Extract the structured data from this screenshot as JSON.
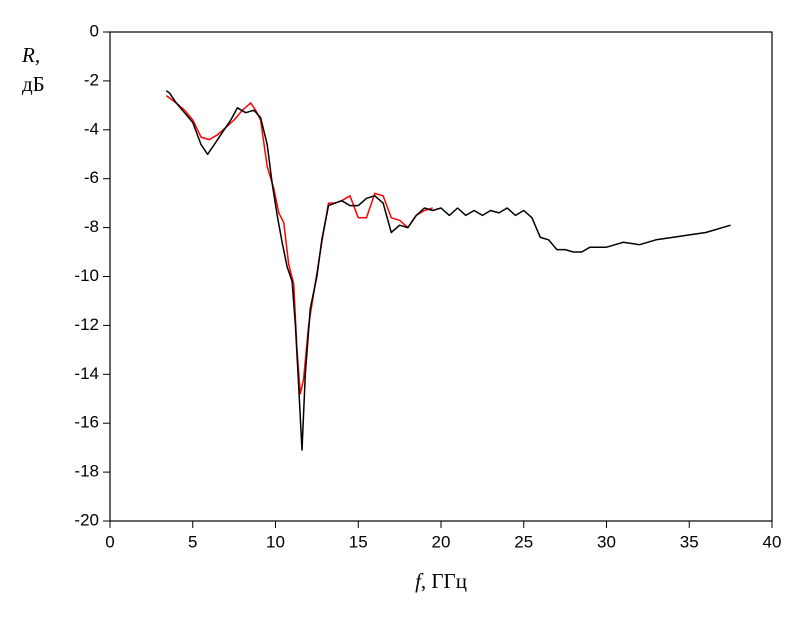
{
  "chart_data": {
    "type": "line",
    "x_label": [
      "f",
      ", ГГц"
    ],
    "y_label": [
      "R,",
      "дБ"
    ],
    "xlim": [
      0,
      40
    ],
    "xticks": [
      0,
      5,
      10,
      15,
      20,
      25,
      30,
      35,
      40
    ],
    "ylim": [
      -20,
      0
    ],
    "yticks": [
      0,
      -2,
      -4,
      -6,
      -8,
      -10,
      -12,
      -14,
      -16,
      -18,
      -20
    ],
    "series": [
      {
        "color": "#ff0000",
        "x": [
          3.4,
          4,
          4.5,
          5,
          5.5,
          6,
          6.5,
          7,
          7.5,
          8,
          8.5,
          8.8,
          9.1,
          9.5,
          9.9,
          10.2,
          10.5,
          10.8,
          11.1,
          11.3,
          11.5,
          11.7,
          12.0,
          12.4,
          12.8,
          13.2,
          13.6,
          14,
          14.5,
          15,
          15.5,
          16,
          16.5,
          17,
          17.5,
          18,
          18.5,
          19,
          19.5
        ],
        "values": [
          -2.6,
          -2.9,
          -3.2,
          -3.6,
          -4.3,
          -4.4,
          -4.2,
          -3.9,
          -3.6,
          -3.2,
          -2.9,
          -3.2,
          -3.6,
          -5.5,
          -6.4,
          -7.4,
          -7.8,
          -9.5,
          -10.3,
          -13.0,
          -14.8,
          -14.2,
          -12.0,
          -10.3,
          -8.6,
          -7.0,
          -7.0,
          -6.9,
          -6.7,
          -7.6,
          -7.6,
          -6.6,
          -6.7,
          -7.6,
          -7.7,
          -8.0,
          -7.5,
          -7.3,
          -7.2
        ]
      },
      {
        "color": "#000000",
        "x": [
          3.4,
          3.6,
          4,
          4.5,
          5,
          5.5,
          5.9,
          6.3,
          6.8,
          7.3,
          7.7,
          8.2,
          8.7,
          9.1,
          9.5,
          9.8,
          10.1,
          10.4,
          10.7,
          11.0,
          11.2,
          11.4,
          11.6,
          11.8,
          12.1,
          12.5,
          12.8,
          13.2,
          13.6,
          14.0,
          14.5,
          15.0,
          15.5,
          16.0,
          16.5,
          17.0,
          17.5,
          18.0,
          18.5,
          19.0,
          19.5,
          20.0,
          20.5,
          21,
          21.5,
          22,
          22.5,
          23,
          23.5,
          24,
          24.5,
          25,
          25.5,
          26,
          26.5,
          27,
          27.5,
          28,
          28.5,
          29,
          30,
          31,
          32,
          33,
          34,
          35,
          36,
          37.5
        ],
        "values": [
          -2.4,
          -2.5,
          -2.9,
          -3.3,
          -3.7,
          -4.6,
          -5.0,
          -4.6,
          -4.1,
          -3.6,
          -3.1,
          -3.3,
          -3.2,
          -3.5,
          -4.6,
          -6.2,
          -7.5,
          -8.6,
          -9.6,
          -10.2,
          -12.0,
          -14.5,
          -17.1,
          -14.0,
          -11.3,
          -10.0,
          -8.5,
          -7.1,
          -7.0,
          -6.9,
          -7.1,
          -7.1,
          -6.8,
          -6.7,
          -7.0,
          -8.2,
          -7.9,
          -8.0,
          -7.5,
          -7.2,
          -7.3,
          -7.2,
          -7.5,
          -7.2,
          -7.5,
          -7.3,
          -7.5,
          -7.3,
          -7.4,
          -7.2,
          -7.5,
          -7.3,
          -7.6,
          -8.4,
          -8.5,
          -8.9,
          -8.9,
          -9.0,
          -9.0,
          -8.8,
          -8.8,
          -8.6,
          -8.7,
          -8.5,
          -8.4,
          -8.3,
          -8.2,
          -7.9
        ]
      }
    ]
  }
}
